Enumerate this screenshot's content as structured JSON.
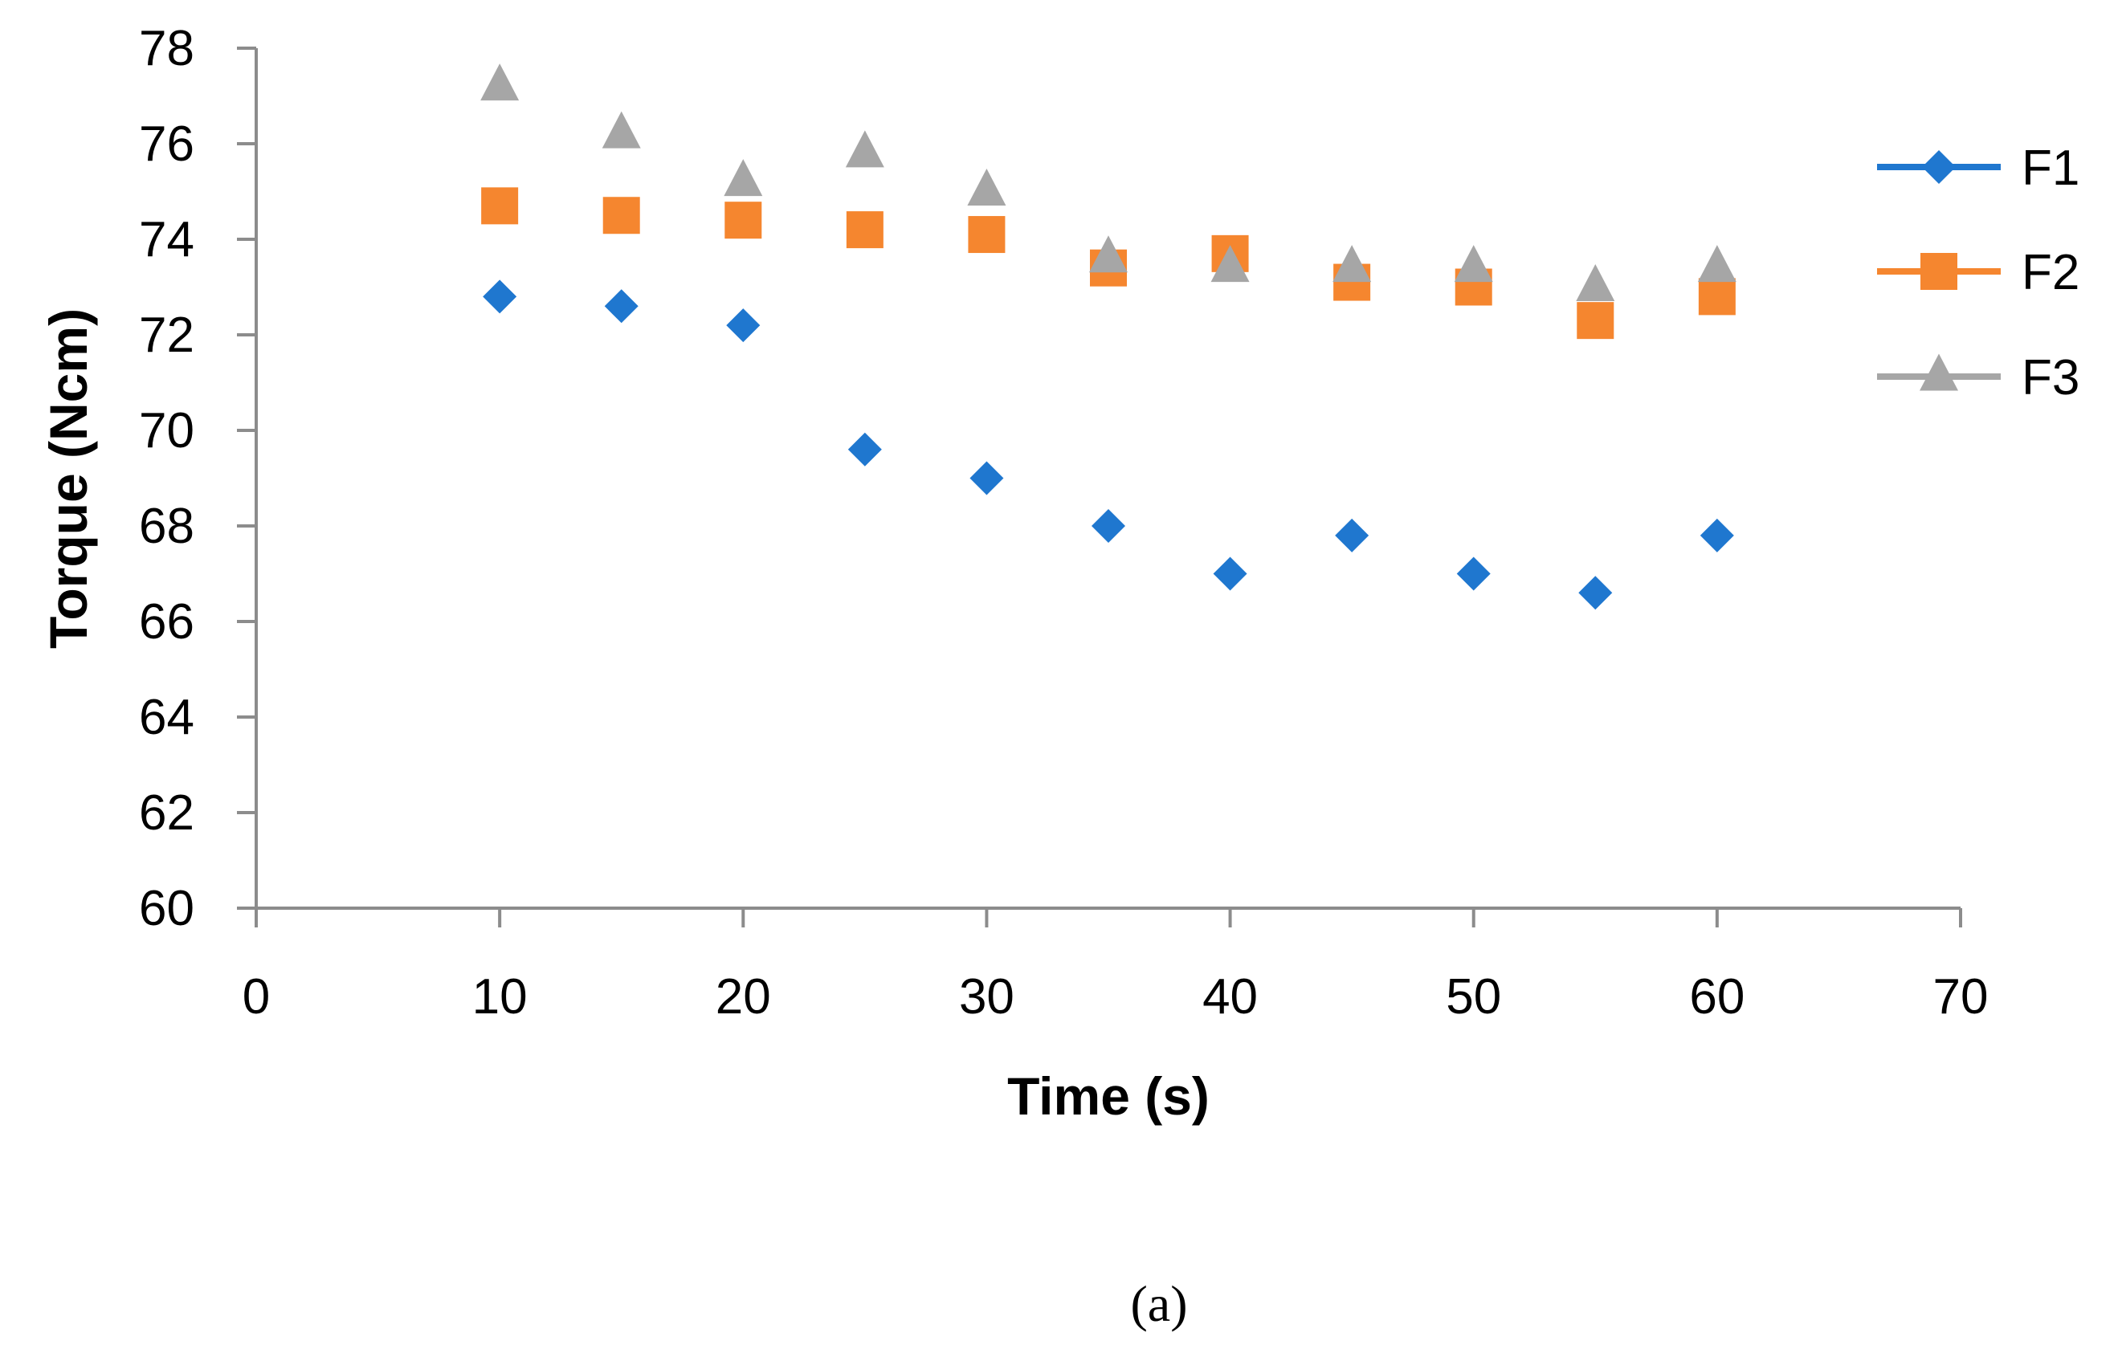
{
  "chart_data": {
    "type": "scatter",
    "title": "",
    "xlabel": "Time (s)",
    "ylabel": "Torque (Ncm)",
    "xlim": [
      0,
      70
    ],
    "ylim": [
      60,
      78
    ],
    "xticks": [
      0,
      10,
      20,
      30,
      40,
      50,
      60,
      70
    ],
    "yticks": [
      60,
      62,
      64,
      66,
      68,
      70,
      72,
      74,
      76,
      78
    ],
    "grid": false,
    "legend_position": "right",
    "series": [
      {
        "name": "F1",
        "marker": "diamond",
        "color": "#1F77CF",
        "x": [
          10,
          15,
          20,
          25,
          30,
          35,
          40,
          45,
          50,
          55,
          60
        ],
        "y": [
          72.8,
          72.6,
          72.2,
          69.6,
          69.0,
          68.0,
          67.0,
          67.8,
          67.0,
          66.6,
          67.8
        ]
      },
      {
        "name": "F2",
        "marker": "square",
        "color": "#F5862F",
        "x": [
          10,
          15,
          20,
          25,
          30,
          35,
          40,
          45,
          50,
          55,
          60
        ],
        "y": [
          74.7,
          74.5,
          74.4,
          74.2,
          74.1,
          73.4,
          73.7,
          73.1,
          73.0,
          72.3,
          72.8
        ]
      },
      {
        "name": "F3",
        "marker": "triangle",
        "color": "#A6A6A6",
        "x": [
          10,
          15,
          20,
          25,
          30,
          35,
          40,
          45,
          50,
          55,
          60
        ],
        "y": [
          77.2,
          76.2,
          75.2,
          75.8,
          75.0,
          73.6,
          73.4,
          73.4,
          73.4,
          73.0,
          73.4
        ]
      }
    ],
    "caption": "(a)"
  }
}
